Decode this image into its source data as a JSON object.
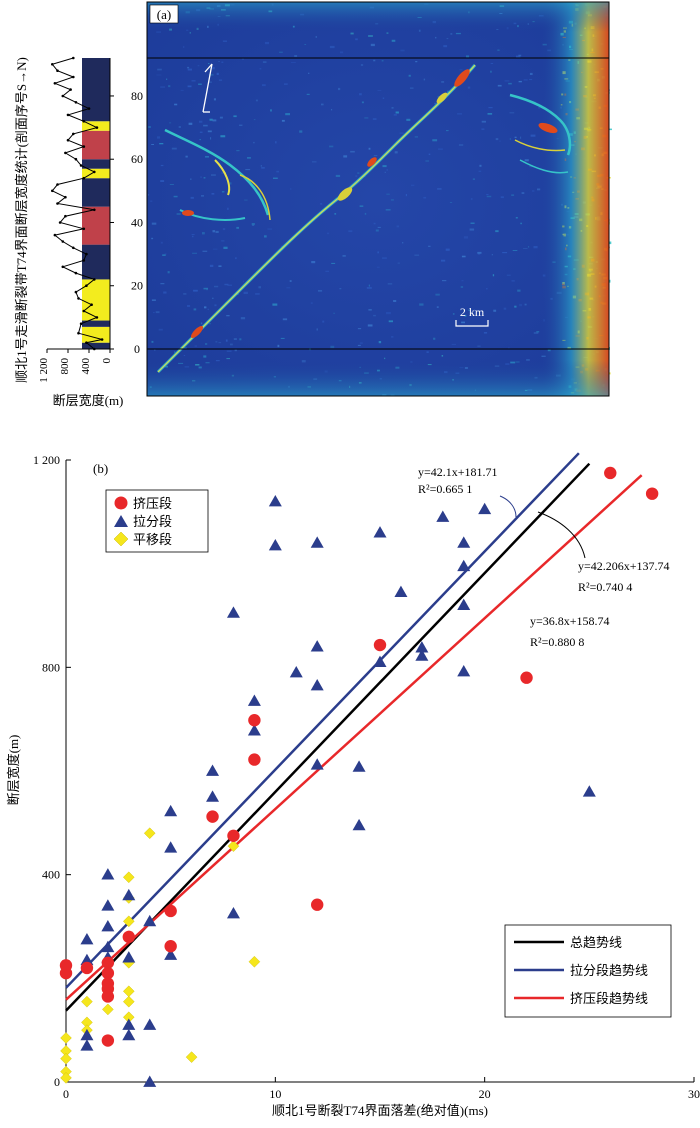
{
  "panel_a": {
    "label": "(a)",
    "ylabel_right": "顺北1号走滑断裂带T74界面断层宽度统计(剖面序号S→N)",
    "xlabel": "断层宽度(m)",
    "yticks": [
      "0",
      "20",
      "40",
      "60",
      "80"
    ],
    "xticks": [
      "1 200",
      "800",
      "400",
      "0"
    ],
    "scale_label": "2 km",
    "segments": [
      {
        "from": 0,
        "to": 2,
        "kind": "navy"
      },
      {
        "from": 2,
        "to": 7,
        "kind": "yellow"
      },
      {
        "from": 7,
        "to": 9,
        "kind": "navy"
      },
      {
        "from": 9,
        "to": 22,
        "kind": "yellow"
      },
      {
        "from": 22,
        "to": 33,
        "kind": "navy"
      },
      {
        "from": 33,
        "to": 45,
        "kind": "red"
      },
      {
        "from": 45,
        "to": 54,
        "kind": "navy"
      },
      {
        "from": 54,
        "to": 57,
        "kind": "yellow"
      },
      {
        "from": 57,
        "to": 60,
        "kind": "navy"
      },
      {
        "from": 60,
        "to": 69,
        "kind": "red"
      },
      {
        "from": 69,
        "to": 72,
        "kind": "yellow"
      },
      {
        "from": 72,
        "to": 92,
        "kind": "navy"
      }
    ],
    "width_profile": [
      [
        300,
        0
      ],
      [
        450,
        2
      ],
      [
        150,
        3
      ],
      [
        600,
        5
      ],
      [
        550,
        8
      ],
      [
        250,
        10
      ],
      [
        500,
        12
      ],
      [
        350,
        14
      ],
      [
        600,
        16
      ],
      [
        650,
        18
      ],
      [
        450,
        20
      ],
      [
        300,
        22
      ],
      [
        650,
        24
      ],
      [
        900,
        26
      ],
      [
        500,
        28
      ],
      [
        450,
        30
      ],
      [
        700,
        32
      ],
      [
        900,
        34
      ],
      [
        1050,
        36
      ],
      [
        500,
        38
      ],
      [
        950,
        40
      ],
      [
        850,
        42
      ],
      [
        300,
        44
      ],
      [
        1000,
        46
      ],
      [
        850,
        48
      ],
      [
        1100,
        50
      ],
      [
        1000,
        52
      ],
      [
        500,
        54
      ],
      [
        300,
        56
      ],
      [
        550,
        58
      ],
      [
        650,
        60
      ],
      [
        850,
        62
      ],
      [
        500,
        64
      ],
      [
        800,
        66
      ],
      [
        700,
        68
      ],
      [
        250,
        70
      ],
      [
        500,
        72
      ],
      [
        800,
        74
      ],
      [
        400,
        76
      ],
      [
        650,
        78
      ],
      [
        900,
        80
      ],
      [
        750,
        82
      ],
      [
        1050,
        84
      ],
      [
        700,
        86
      ],
      [
        1000,
        88
      ],
      [
        1100,
        90
      ],
      [
        700,
        92
      ]
    ]
  },
  "chart_data": {
    "type": "scatter",
    "label": "(b)",
    "xlabel": "顺北1号断裂T74界面落差(绝对值)(ms)",
    "ylabel": "断层宽度(m)",
    "xlim": [
      0,
      30
    ],
    "ylim": [
      0,
      1200
    ],
    "xticks": [
      0,
      10,
      20,
      30
    ],
    "yticks": [
      0,
      400,
      800,
      1200
    ],
    "ytick_labels": [
      "0",
      "400",
      "800",
      "1 200"
    ],
    "legend_markers": [
      {
        "name": "挤压段",
        "symbol": "circle",
        "color": "#e8282a"
      },
      {
        "name": "拉分段",
        "symbol": "triangle",
        "color": "#2b3d8c"
      },
      {
        "name": "平移段",
        "symbol": "diamond",
        "color": "#f5e61c"
      }
    ],
    "legend_lines": [
      {
        "name": "总趋势线",
        "color": "#000000"
      },
      {
        "name": "拉分段趋势线",
        "color": "#2b3d8c"
      },
      {
        "name": "挤压段趋势线",
        "color": "#e8282a"
      }
    ],
    "series": [
      {
        "name": "挤压段",
        "color": "#e8282a",
        "points": [
          [
            0,
            225
          ],
          [
            0,
            210
          ],
          [
            1,
            220
          ],
          [
            2,
            230
          ],
          [
            2,
            210
          ],
          [
            2,
            190
          ],
          [
            2,
            180
          ],
          [
            2,
            165
          ],
          [
            2,
            80
          ],
          [
            3,
            280
          ],
          [
            5,
            330
          ],
          [
            5,
            262
          ],
          [
            7,
            512
          ],
          [
            8,
            475
          ],
          [
            9,
            698
          ],
          [
            9,
            622
          ],
          [
            12,
            342
          ],
          [
            15,
            843
          ],
          [
            22,
            780
          ],
          [
            26,
            1175
          ],
          [
            28,
            1135
          ]
        ]
      },
      {
        "name": "拉分段",
        "color": "#2b3d8c",
        "points": [
          [
            1,
            275
          ],
          [
            1,
            235
          ],
          [
            1,
            90
          ],
          [
            1,
            70
          ],
          [
            2,
            400
          ],
          [
            2,
            340
          ],
          [
            2,
            300
          ],
          [
            2,
            260
          ],
          [
            2,
            240
          ],
          [
            3,
            360
          ],
          [
            3,
            240
          ],
          [
            3,
            110
          ],
          [
            3,
            90
          ],
          [
            4,
            310
          ],
          [
            4,
            110
          ],
          [
            4,
            0
          ],
          [
            5,
            522
          ],
          [
            5,
            452
          ],
          [
            5,
            245
          ],
          [
            7,
            600
          ],
          [
            7,
            550
          ],
          [
            8,
            905
          ],
          [
            8,
            325
          ],
          [
            9,
            735
          ],
          [
            9,
            678
          ],
          [
            10,
            1120
          ],
          [
            10,
            1035
          ],
          [
            11,
            790
          ],
          [
            12,
            1040
          ],
          [
            12,
            840
          ],
          [
            12,
            765
          ],
          [
            12,
            612
          ],
          [
            14,
            608
          ],
          [
            14,
            495
          ],
          [
            15,
            1060
          ],
          [
            15,
            810
          ],
          [
            16,
            945
          ],
          [
            17,
            838
          ],
          [
            17,
            822
          ],
          [
            18,
            1090
          ],
          [
            19,
            1040
          ],
          [
            19,
            995
          ],
          [
            19,
            920
          ],
          [
            19,
            792
          ],
          [
            20,
            1105
          ],
          [
            25,
            560
          ]
        ]
      },
      {
        "name": "平移段",
        "color": "#f5e61c",
        "points": [
          [
            0,
            85
          ],
          [
            0,
            60
          ],
          [
            0,
            45
          ],
          [
            0,
            20
          ],
          [
            0,
            8
          ],
          [
            1,
            155
          ],
          [
            1,
            115
          ],
          [
            1,
            100
          ],
          [
            2,
            215
          ],
          [
            2,
            175
          ],
          [
            2,
            140
          ],
          [
            3,
            395
          ],
          [
            3,
            355
          ],
          [
            3,
            310
          ],
          [
            3,
            230
          ],
          [
            3,
            175
          ],
          [
            3,
            155
          ],
          [
            3,
            125
          ],
          [
            4,
            480
          ],
          [
            6,
            48
          ],
          [
            8,
            455
          ],
          [
            9,
            232
          ]
        ]
      }
    ],
    "trendlines": [
      {
        "name": "总趋势线",
        "color": "#000000",
        "slope": 42.206,
        "intercept": 137.74,
        "x_range": [
          0,
          25
        ],
        "equation": "y=42.206x+137.74",
        "r2": "R²=0.740 4"
      },
      {
        "name": "拉分段趋势线",
        "color": "#2b3d8c",
        "slope": 42.1,
        "intercept": 181.71,
        "x_range": [
          0,
          24.5
        ],
        "equation": "y=42.1x+181.71",
        "r2": "R²=0.665 1"
      },
      {
        "name": "挤压段趋势线",
        "color": "#e8282a",
        "slope": 36.8,
        "intercept": 158.74,
        "x_range": [
          0,
          27.5
        ],
        "equation": "y=36.8x+158.74",
        "r2": "R²=0.880 8"
      }
    ]
  }
}
